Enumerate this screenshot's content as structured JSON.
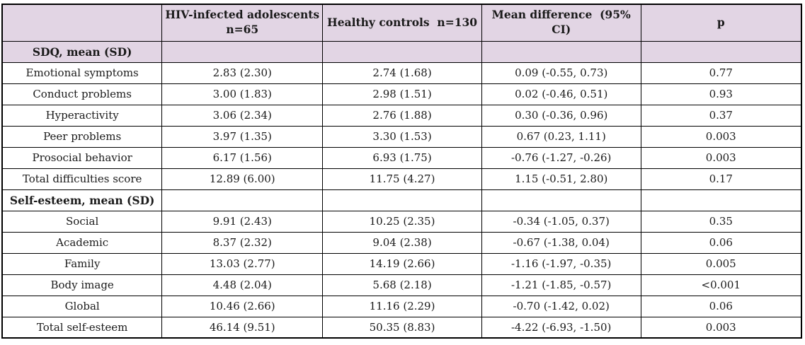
{
  "colors": {
    "header_bg": "#e2d5e4",
    "border": "#000000",
    "text": "#1a1a1a",
    "row_bg": "#ffffff"
  },
  "table": {
    "columns": [
      {
        "label": ""
      },
      {
        "label": "HIV-infected adolescents\nn=65"
      },
      {
        "label": "Healthy controls  n=130"
      },
      {
        "label": "Mean difference  (95% CI)"
      },
      {
        "label": "p"
      }
    ],
    "rows": [
      {
        "type": "section",
        "highlight": true,
        "label": "SDQ, mean (SD)",
        "cells": [
          "",
          "",
          "",
          ""
        ]
      },
      {
        "type": "data",
        "label": "Emotional symptoms",
        "cells": [
          "2.83 (2.30)",
          "2.74 (1.68)",
          "0.09 (-0.55, 0.73)",
          "0.77"
        ]
      },
      {
        "type": "data",
        "label": "Conduct problems",
        "cells": [
          "3.00 (1.83)",
          "2.98 (1.51)",
          "0.02 (-0.46, 0.51)",
          "0.93"
        ]
      },
      {
        "type": "data",
        "label": "Hyperactivity",
        "cells": [
          "3.06 (2.34)",
          "2.76 (1.88)",
          "0.30 (-0.36, 0.96)",
          "0.37"
        ]
      },
      {
        "type": "data",
        "label": "Peer problems",
        "cells": [
          "3.97 (1.35)",
          "3.30 (1.53)",
          "0.67 (0.23, 1.11)",
          "0.003"
        ]
      },
      {
        "type": "data",
        "label": "Prosocial behavior",
        "cells": [
          "6.17 (1.56)",
          "6.93 (1.75)",
          "-0.76 (-1.27, -0.26)",
          "0.003"
        ]
      },
      {
        "type": "data",
        "label": "Total difficulties score",
        "cells": [
          "12.89 (6.00)",
          "11.75 (4.27)",
          "1.15 (-0.51, 2.80)",
          "0.17"
        ]
      },
      {
        "type": "section",
        "highlight": false,
        "label": "Self-esteem, mean (SD)",
        "cells": [
          "",
          "",
          "",
          ""
        ]
      },
      {
        "type": "data",
        "label": "Social",
        "cells": [
          "9.91 (2.43)",
          "10.25 (2.35)",
          "-0.34 (-1.05, 0.37)",
          "0.35"
        ]
      },
      {
        "type": "data",
        "label": "Academic",
        "cells": [
          "8.37 (2.32)",
          "9.04 (2.38)",
          "-0.67 (-1.38, 0.04)",
          "0.06"
        ]
      },
      {
        "type": "data",
        "label": "Family",
        "cells": [
          "13.03 (2.77)",
          "14.19 (2.66)",
          "-1.16 (-1.97, -0.35)",
          "0.005"
        ]
      },
      {
        "type": "data",
        "label": "Body image",
        "cells": [
          "4.48 (2.04)",
          "5.68 (2.18)",
          "-1.21 (-1.85, -0.57)",
          "<0.001"
        ]
      },
      {
        "type": "data",
        "label": "Global",
        "cells": [
          "10.46 (2.66)",
          "11.16 (2.29)",
          "-0.70 (-1.42, 0.02)",
          "0.06"
        ]
      },
      {
        "type": "data",
        "label": "Total self-esteem",
        "cells": [
          "46.14 (9.51)",
          "50.35 (8.83)",
          "-4.22 (-6.93, -1.50)",
          "0.003"
        ]
      }
    ]
  }
}
